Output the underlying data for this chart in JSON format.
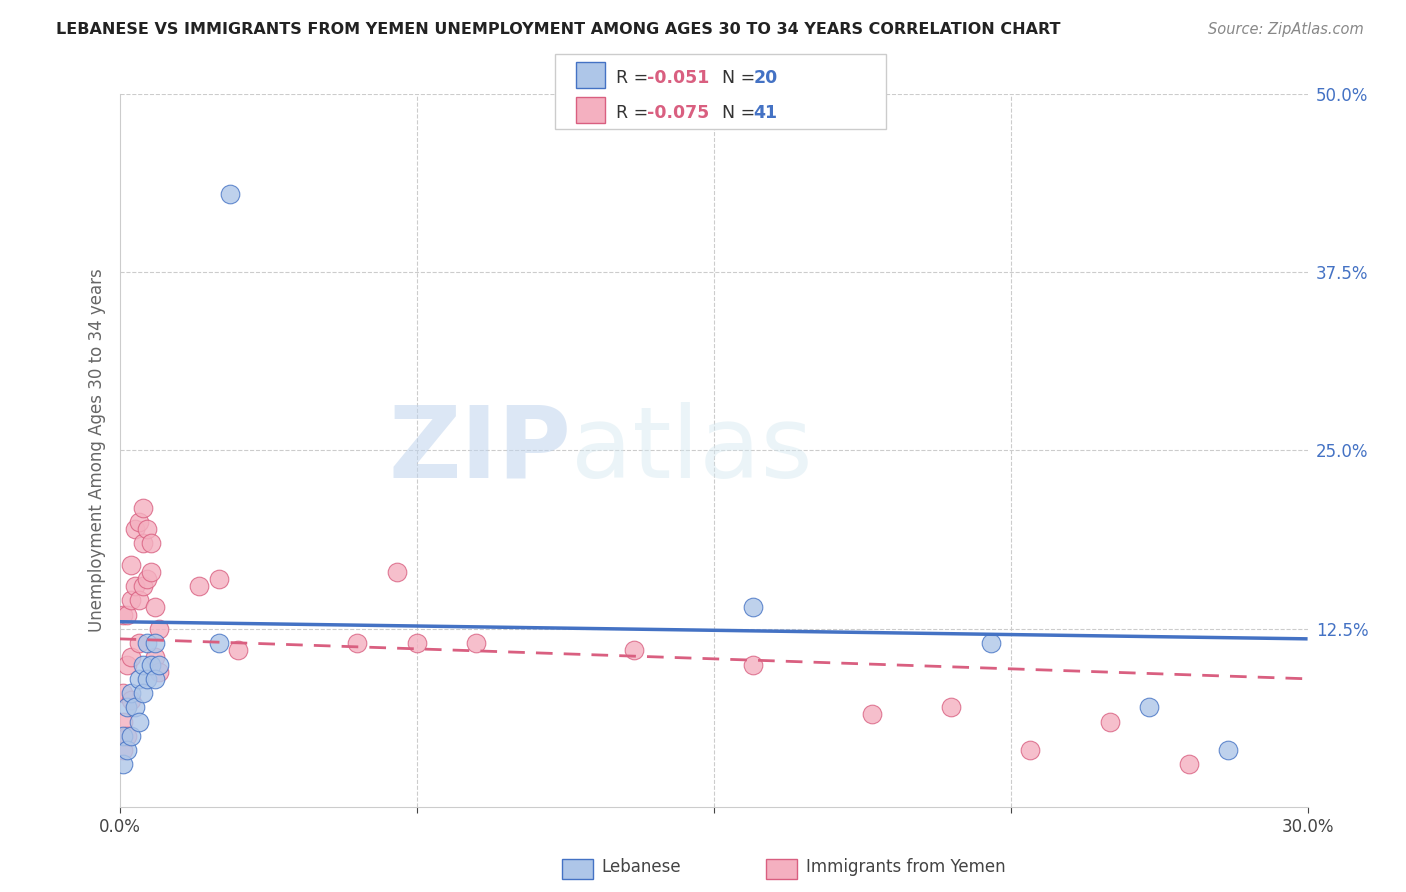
{
  "title": "LEBANESE VS IMMIGRANTS FROM YEMEN UNEMPLOYMENT AMONG AGES 30 TO 34 YEARS CORRELATION CHART",
  "source": "Source: ZipAtlas.com",
  "ylabel": "Unemployment Among Ages 30 to 34 years",
  "xlim": [
    0.0,
    0.3
  ],
  "ylim": [
    0.0,
    0.5
  ],
  "color_lebanese_fill": "#aec6e8",
  "color_lebanese_edge": "#4472c4",
  "color_yemen_fill": "#f4b0c0",
  "color_yemen_edge": "#d95f80",
  "color_trend_lebanese": "#4472c4",
  "color_trend_yemen": "#d95f80",
  "watermark_zip": "ZIP",
  "watermark_atlas": "atlas",
  "background_color": "#ffffff",
  "grid_color": "#cccccc",
  "lebanese_x": [
    0.001,
    0.001,
    0.002,
    0.002,
    0.003,
    0.003,
    0.004,
    0.005,
    0.005,
    0.006,
    0.006,
    0.007,
    0.007,
    0.008,
    0.009,
    0.009,
    0.01,
    0.025,
    0.028,
    0.16,
    0.22,
    0.26,
    0.28
  ],
  "lebanese_y": [
    0.03,
    0.05,
    0.04,
    0.07,
    0.05,
    0.08,
    0.07,
    0.06,
    0.09,
    0.08,
    0.1,
    0.09,
    0.115,
    0.1,
    0.09,
    0.115,
    0.1,
    0.115,
    0.43,
    0.14,
    0.115,
    0.07,
    0.04
  ],
  "yemen_x": [
    0.001,
    0.001,
    0.001,
    0.001,
    0.002,
    0.002,
    0.002,
    0.003,
    0.003,
    0.003,
    0.003,
    0.004,
    0.004,
    0.005,
    0.005,
    0.005,
    0.006,
    0.006,
    0.006,
    0.007,
    0.007,
    0.008,
    0.008,
    0.009,
    0.009,
    0.01,
    0.01,
    0.02,
    0.025,
    0.03,
    0.06,
    0.07,
    0.075,
    0.09,
    0.13,
    0.16,
    0.19,
    0.21,
    0.23,
    0.25,
    0.27
  ],
  "yemen_y": [
    0.04,
    0.06,
    0.08,
    0.135,
    0.05,
    0.1,
    0.135,
    0.075,
    0.105,
    0.145,
    0.17,
    0.155,
    0.195,
    0.115,
    0.145,
    0.2,
    0.155,
    0.185,
    0.21,
    0.16,
    0.195,
    0.165,
    0.185,
    0.105,
    0.14,
    0.095,
    0.125,
    0.155,
    0.16,
    0.11,
    0.115,
    0.165,
    0.115,
    0.115,
    0.11,
    0.1,
    0.065,
    0.07,
    0.04,
    0.06,
    0.03
  ],
  "trend_leb_x0": 0.0,
  "trend_leb_y0": 0.13,
  "trend_leb_x1": 0.3,
  "trend_leb_y1": 0.118,
  "trend_yem_x0": 0.0,
  "trend_yem_y0": 0.118,
  "trend_yem_x1": 0.3,
  "trend_yem_y1": 0.09
}
